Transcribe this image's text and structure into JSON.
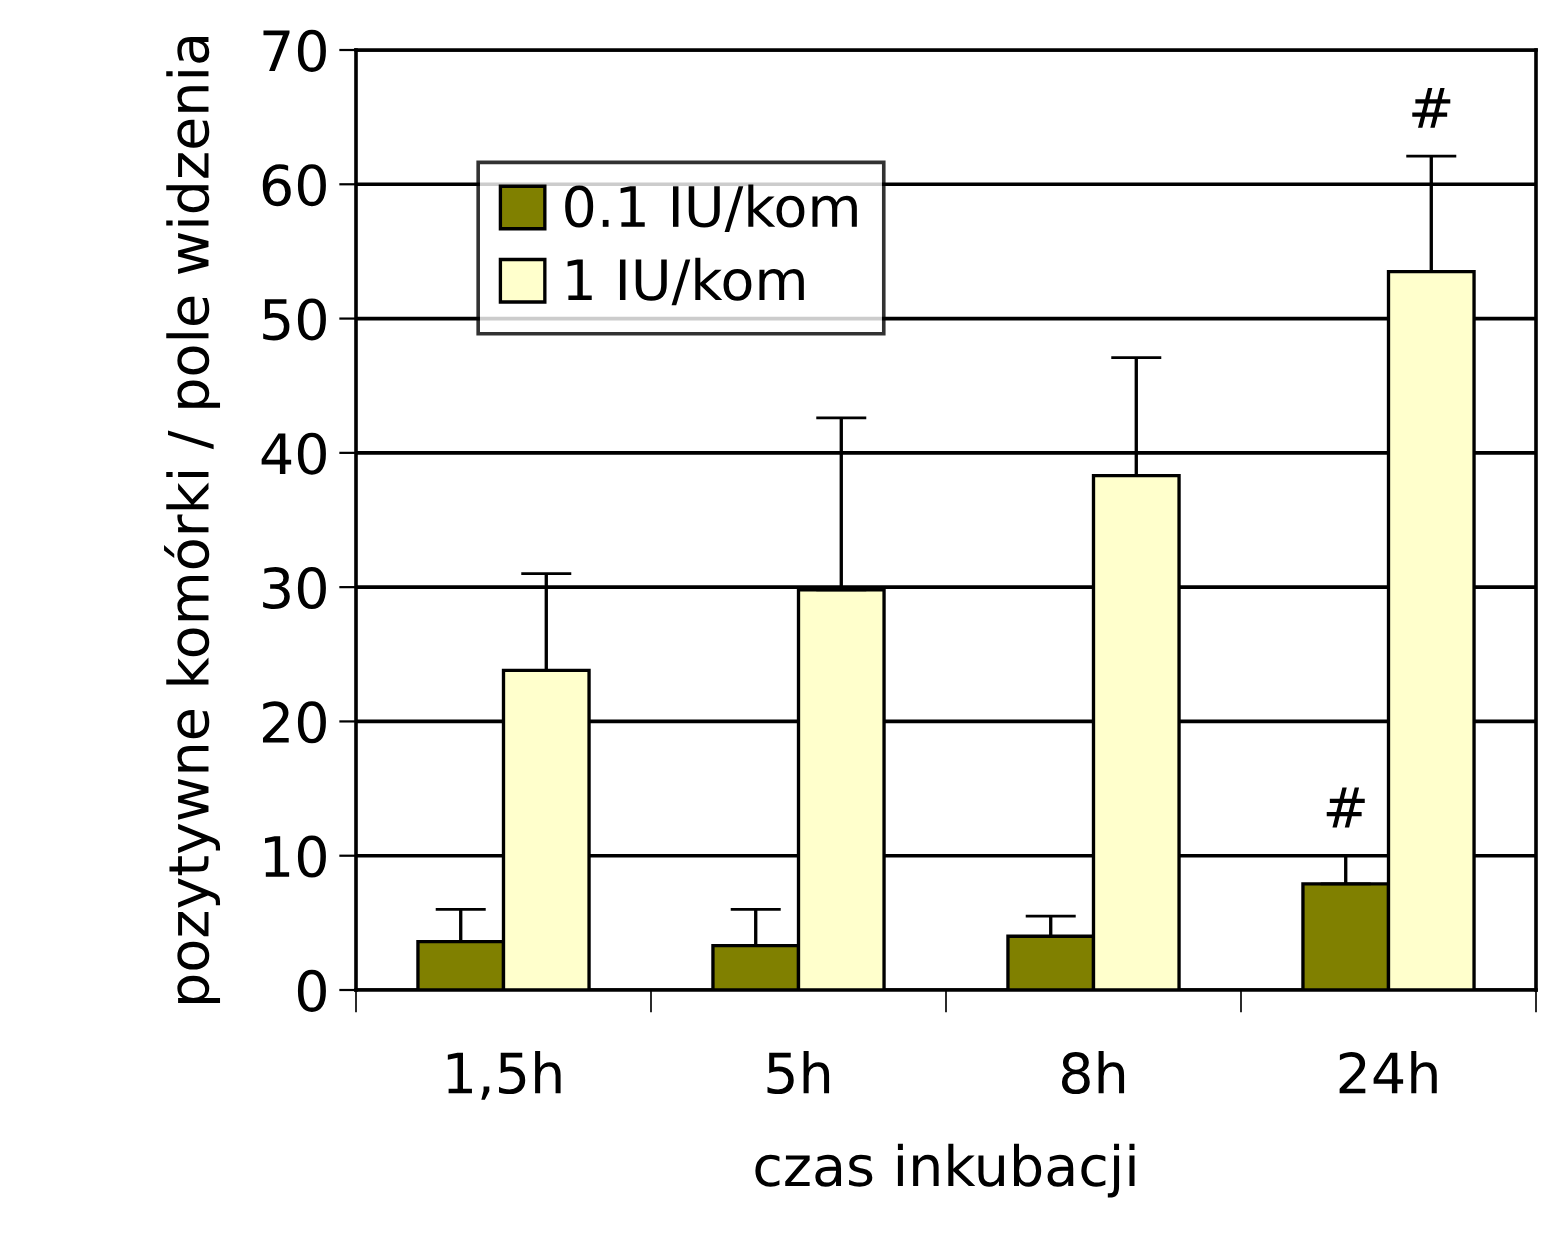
{
  "chart_data": {
    "type": "bar",
    "xlabel": "czas inkubacji",
    "ylabel": "pozytywne komórki / pole widzenia",
    "categories": [
      "1,5h",
      "5h",
      "8h",
      "24h"
    ],
    "series": [
      {
        "name": "0.1 IU/kom",
        "color": "#808000",
        "values": [
          3.6,
          3.3,
          4.0,
          7.9
        ],
        "errors": [
          [
            3.6,
            6.0
          ],
          [
            3.3,
            6.0
          ],
          [
            4.0,
            5.5
          ],
          [
            7.9,
            10.0
          ]
        ]
      },
      {
        "name": "1 IU/kom",
        "color": "#ffffcc",
        "values": [
          23.8,
          29.8,
          38.3,
          53.5
        ],
        "errors": [
          [
            23.8,
            31.0
          ],
          [
            29.8,
            42.6
          ],
          [
            38.3,
            47.1
          ],
          [
            53.5,
            62.1
          ]
        ]
      }
    ],
    "annotations": [
      {
        "text": "#",
        "x": "24h",
        "y": 7.9
      },
      {
        "text": "#",
        "x": "24h",
        "y": 53.5
      }
    ],
    "ylim": [
      0,
      70
    ],
    "yticks": [
      0,
      10,
      20,
      30,
      40,
      50,
      60,
      70
    ],
    "grid": "y",
    "legend": "top left"
  }
}
